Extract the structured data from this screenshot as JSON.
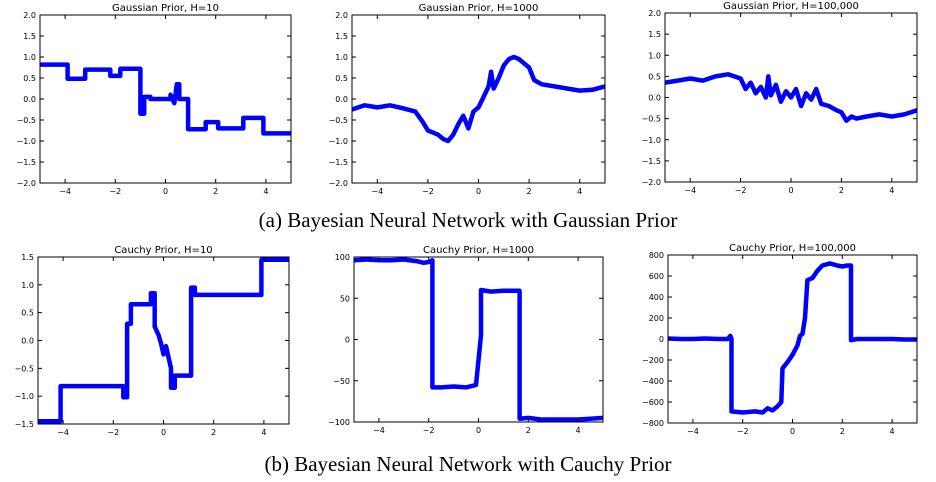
{
  "captions": {
    "a": "(a) Bayesian Neural Network with Gaussian Prior",
    "b": "(b) Bayesian Neural Network with Cauchy Prior"
  },
  "colors": {
    "line": "#0000ff",
    "axes": "#000000"
  },
  "chart_data": [
    {
      "type": "line",
      "title": "Gaussian Prior, H=10",
      "xlim": [
        -5,
        5
      ],
      "ylim": [
        -2.0,
        2.0
      ],
      "xticks": [
        -4,
        -2,
        0,
        2,
        4
      ],
      "xticklabels": [
        "−4",
        "−2",
        "0",
        "2",
        "4"
      ],
      "yticks": [
        -2.0,
        -1.5,
        -1.0,
        -0.5,
        0.0,
        0.5,
        1.0,
        1.5,
        2.0
      ],
      "yticklabels": [
        "−2.0",
        "−1.5",
        "−1.0",
        "−0.5",
        "0.0",
        "0.5",
        "1.0",
        "1.5",
        "2.0"
      ],
      "x": [
        -5,
        -3.9,
        -3.9,
        -3.2,
        -3.2,
        -2.2,
        -2.2,
        -1.8,
        -1.8,
        -1.0,
        -1.0,
        -0.85,
        -0.85,
        -0.6,
        -0.6,
        0.2,
        0.2,
        0.35,
        0.45,
        0.55,
        0.55,
        0.9,
        0.9,
        1.6,
        1.6,
        2.1,
        2.1,
        3.1,
        3.1,
        3.9,
        3.9,
        5
      ],
      "y": [
        0.82,
        0.82,
        0.48,
        0.48,
        0.7,
        0.7,
        0.55,
        0.55,
        0.72,
        0.72,
        -0.35,
        -0.35,
        0.05,
        0.05,
        0.0,
        0.0,
        0.1,
        -0.1,
        0.35,
        0.35,
        0.0,
        0.0,
        -0.72,
        -0.72,
        -0.55,
        -0.55,
        -0.7,
        -0.7,
        -0.45,
        -0.45,
        -0.82,
        -0.82
      ]
    },
    {
      "type": "line",
      "title": "Gaussian Prior, H=1000",
      "xlim": [
        -5,
        5
      ],
      "ylim": [
        -2.0,
        2.0
      ],
      "xticks": [
        -4,
        -2,
        0,
        2,
        4
      ],
      "xticklabels": [
        "−4",
        "−2",
        "0",
        "2",
        "4"
      ],
      "yticks": [
        -2.0,
        -1.5,
        -1.0,
        -0.5,
        0.0,
        0.5,
        1.0,
        1.5,
        2.0
      ],
      "yticklabels": [
        "−2.0",
        "−1.5",
        "−1.0",
        "−0.5",
        "0.0",
        "0.5",
        "1.0",
        "1.5",
        "2.0"
      ],
      "x": [
        -5,
        -4.5,
        -4.0,
        -3.5,
        -3.0,
        -2.5,
        -2.2,
        -2.0,
        -1.8,
        -1.6,
        -1.4,
        -1.2,
        -1.0,
        -0.8,
        -0.6,
        -0.4,
        -0.2,
        0.0,
        0.2,
        0.4,
        0.5,
        0.6,
        0.8,
        1.0,
        1.2,
        1.4,
        1.6,
        1.8,
        2.0,
        2.2,
        2.5,
        3.0,
        3.5,
        4.0,
        4.5,
        5
      ],
      "y": [
        -0.25,
        -0.15,
        -0.2,
        -0.15,
        -0.22,
        -0.3,
        -0.55,
        -0.75,
        -0.8,
        -0.85,
        -0.95,
        -1.0,
        -0.85,
        -0.6,
        -0.4,
        -0.7,
        -0.3,
        -0.2,
        0.05,
        0.3,
        0.65,
        0.25,
        0.5,
        0.8,
        0.95,
        1.0,
        0.95,
        0.85,
        0.75,
        0.45,
        0.35,
        0.3,
        0.25,
        0.2,
        0.22,
        0.3
      ]
    },
    {
      "type": "line",
      "title": "Gaussian Prior, H=100,000",
      "xlim": [
        -5,
        5
      ],
      "ylim": [
        -2.0,
        2.0
      ],
      "xticks": [
        -4,
        -2,
        0,
        2,
        4
      ],
      "xticklabels": [
        "−4",
        "−2",
        "0",
        "2",
        "4"
      ],
      "yticks": [
        -2.0,
        -1.5,
        -1.0,
        -0.5,
        0.0,
        0.5,
        1.0,
        1.5,
        2.0
      ],
      "yticklabels": [
        "−2.0",
        "−1.5",
        "−1.0",
        "−0.5",
        "0.0",
        "0.5",
        "1.0",
        "1.5",
        "2.0"
      ],
      "x": [
        -5,
        -4.5,
        -4.0,
        -3.5,
        -3.0,
        -2.5,
        -2.0,
        -1.8,
        -1.6,
        -1.4,
        -1.2,
        -1.0,
        -0.9,
        -0.8,
        -0.6,
        -0.4,
        -0.2,
        0.0,
        0.2,
        0.4,
        0.6,
        0.8,
        1.0,
        1.2,
        1.5,
        1.8,
        2.0,
        2.2,
        2.4,
        2.6,
        3.0,
        3.5,
        4.0,
        4.5,
        5
      ],
      "y": [
        0.35,
        0.4,
        0.45,
        0.4,
        0.5,
        0.55,
        0.45,
        0.2,
        0.35,
        0.1,
        0.25,
        0.0,
        0.5,
        0.05,
        0.3,
        -0.1,
        0.15,
        0.0,
        0.2,
        -0.2,
        0.1,
        -0.05,
        0.2,
        -0.15,
        -0.2,
        -0.3,
        -0.35,
        -0.55,
        -0.45,
        -0.5,
        -0.45,
        -0.4,
        -0.45,
        -0.4,
        -0.3
      ]
    },
    {
      "type": "line",
      "title": "Cauchy Prior, H=10",
      "xlim": [
        -5,
        5
      ],
      "ylim": [
        -1.5,
        1.5
      ],
      "xticks": [
        -4,
        -2,
        0,
        2,
        4
      ],
      "xticklabels": [
        "−4",
        "−2",
        "0",
        "2",
        "4"
      ],
      "yticks": [
        -1.5,
        -1.0,
        -0.5,
        0.0,
        0.5,
        1.0,
        1.5
      ],
      "yticklabels": [
        "−1.5",
        "−1.0",
        "−0.5",
        "0.0",
        "0.5",
        "1.0",
        "1.5"
      ],
      "x": [
        -5,
        -4.1,
        -4.1,
        -1.6,
        -1.6,
        -1.45,
        -1.45,
        -1.3,
        -1.3,
        -1.1,
        -1.1,
        -0.5,
        -0.5,
        -0.35,
        -0.35,
        -0.2,
        -0.1,
        0.0,
        0.1,
        0.2,
        0.3,
        0.3,
        0.45,
        0.45,
        1.1,
        1.1,
        1.25,
        1.25,
        1.4,
        1.4,
        3.9,
        3.9,
        5
      ],
      "y": [
        -1.45,
        -1.45,
        -0.82,
        -0.82,
        -1.02,
        -1.02,
        0.3,
        0.3,
        0.65,
        0.65,
        0.65,
        0.65,
        0.85,
        0.85,
        0.25,
        0.1,
        -0.05,
        -0.25,
        -0.1,
        -0.3,
        -0.5,
        -0.85,
        -0.85,
        -0.63,
        -0.63,
        0.95,
        0.95,
        0.82,
        0.82,
        0.82,
        0.82,
        1.45,
        1.45
      ]
    },
    {
      "type": "line",
      "title": "Cauchy Prior, H=1000",
      "xlim": [
        -5,
        5
      ],
      "ylim": [
        -100,
        100
      ],
      "xticks": [
        -4,
        -2,
        0,
        2,
        4
      ],
      "xticklabels": [
        "−4",
        "−2",
        "0",
        "2",
        "4"
      ],
      "yticks": [
        -100,
        -50,
        0,
        50,
        100
      ],
      "yticklabels": [
        "−100",
        "−50",
        "0",
        "50",
        "100"
      ],
      "x": [
        -5,
        -4.5,
        -4.0,
        -3.5,
        -3.0,
        -2.5,
        -2.2,
        -2.0,
        -1.85,
        -1.85,
        -1.5,
        -1.0,
        -0.5,
        -0.1,
        -0.1,
        0.1,
        0.1,
        0.5,
        1.0,
        1.5,
        1.65,
        1.65,
        2.0,
        2.5,
        3.0,
        3.5,
        4.0,
        4.5,
        5
      ],
      "y": [
        96,
        97,
        96,
        96,
        97,
        95,
        93,
        94,
        96,
        -58,
        -58,
        -57,
        -58,
        -55,
        -55,
        5,
        60,
        58,
        59,
        59,
        59,
        -96,
        -95,
        -97,
        -97,
        -97,
        -97,
        -96,
        -95
      ]
    },
    {
      "type": "line",
      "title": "Cauchy Prior, H=100,000",
      "xlim": [
        -5,
        5
      ],
      "ylim": [
        -800,
        800
      ],
      "xticks": [
        -4,
        -2,
        0,
        2,
        4
      ],
      "xticklabels": [
        "−4",
        "−2",
        "0",
        "2",
        "4"
      ],
      "yticks": [
        -800,
        -600,
        -400,
        -200,
        0,
        200,
        400,
        600,
        800
      ],
      "yticklabels": [
        "−800",
        "−600",
        "−400",
        "−200",
        "0",
        "200",
        "400",
        "600",
        "800"
      ],
      "x": [
        -5,
        -4.5,
        -4.0,
        -3.5,
        -3.0,
        -2.6,
        -2.5,
        -2.45,
        -2.45,
        -2.0,
        -1.5,
        -1.2,
        -1.0,
        -0.8,
        -0.6,
        -0.45,
        -0.4,
        -0.2,
        0.0,
        0.2,
        0.3,
        0.4,
        0.5,
        0.6,
        0.8,
        1.0,
        1.2,
        1.5,
        1.8,
        2.0,
        2.2,
        2.35,
        2.35,
        2.6,
        3.0,
        3.5,
        4.0,
        4.5,
        5
      ],
      "y": [
        5,
        0,
        0,
        5,
        0,
        0,
        30,
        0,
        -690,
        -700,
        -690,
        -700,
        -660,
        -680,
        -640,
        -600,
        -280,
        -220,
        -150,
        -60,
        30,
        50,
        200,
        560,
        580,
        650,
        700,
        720,
        700,
        690,
        700,
        700,
        -10,
        0,
        0,
        0,
        0,
        -5,
        -5
      ]
    }
  ]
}
